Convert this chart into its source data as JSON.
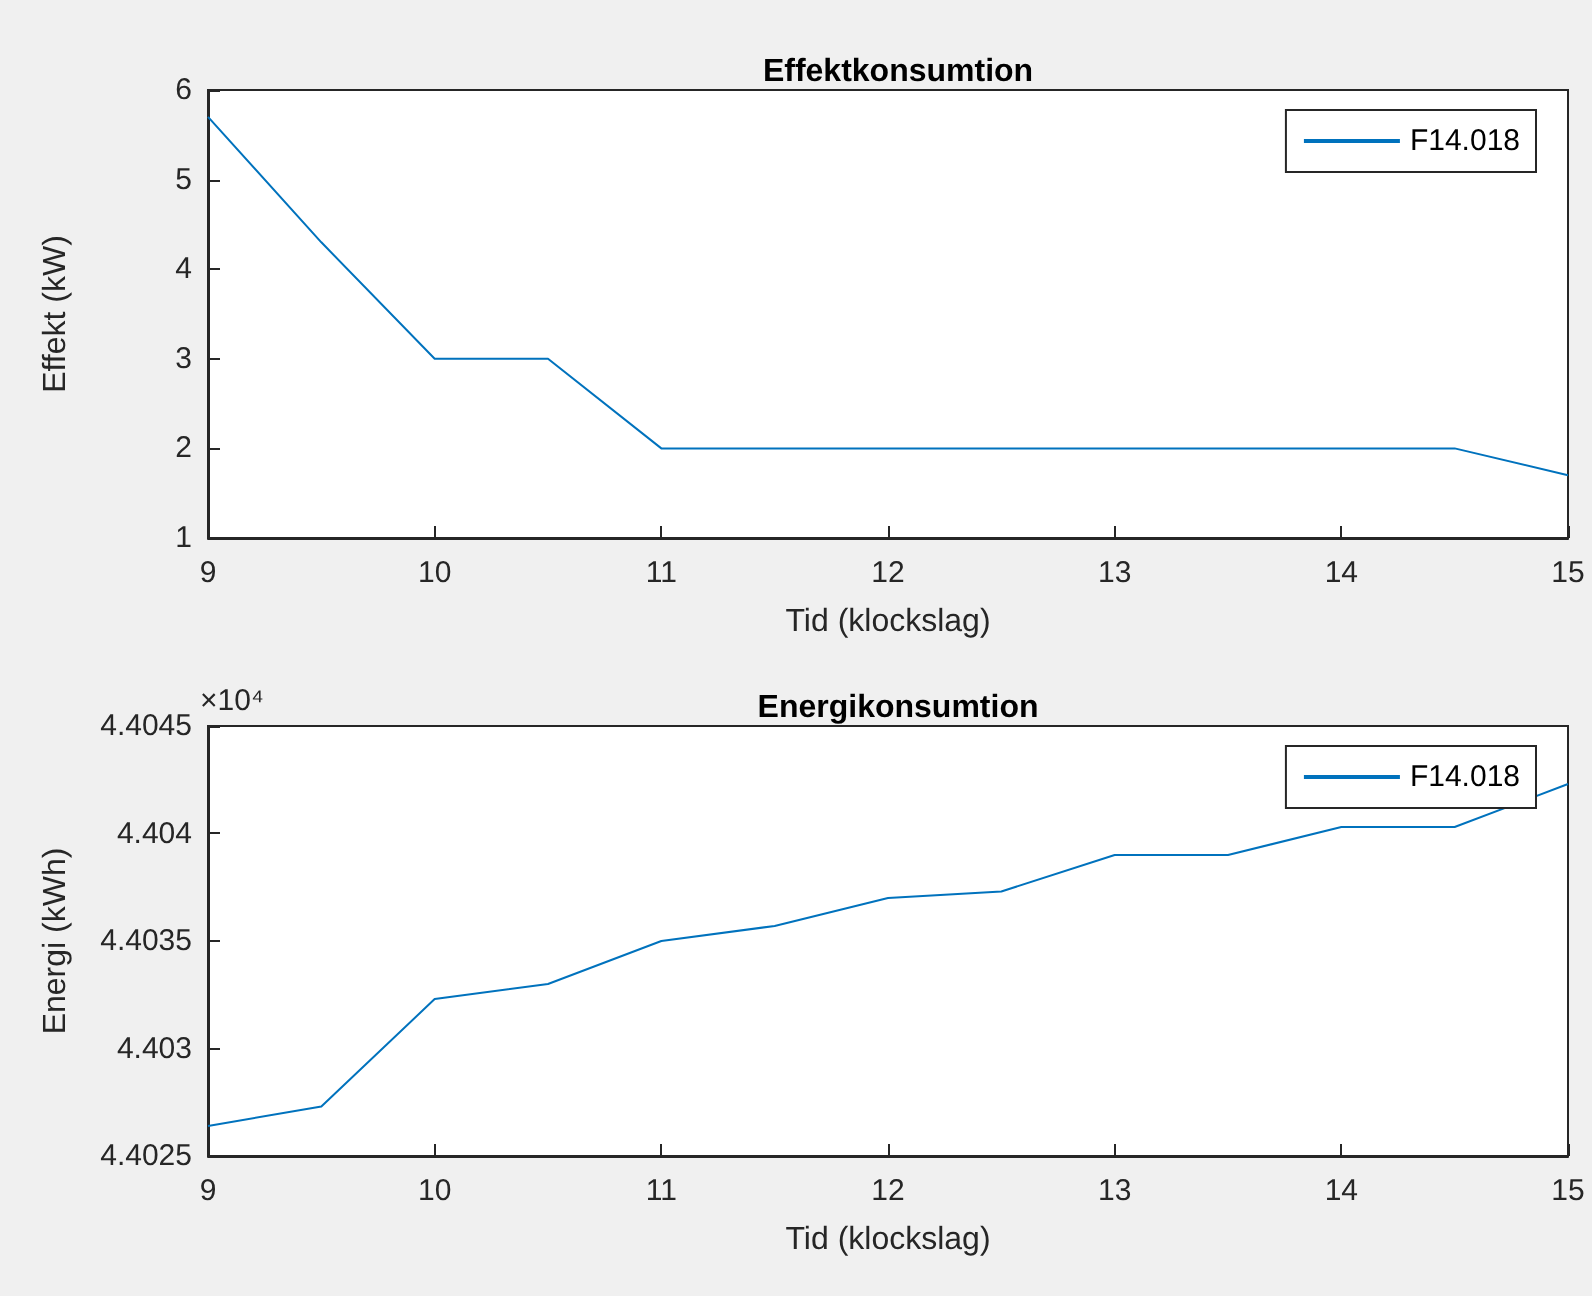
{
  "chart_data": [
    {
      "type": "line",
      "title": "Effektkonsumtion",
      "xlabel": "Tid (klockslag)",
      "ylabel": "Effekt (kW)",
      "x": [
        9,
        9.5,
        10,
        10.5,
        11,
        11.5,
        12,
        12.5,
        13,
        13.5,
        14,
        14.5,
        15
      ],
      "series": [
        {
          "name": "F14.018",
          "color": "#0072bd",
          "values": [
            5.7,
            4.3,
            3,
            3,
            2,
            2,
            2,
            2,
            2,
            2,
            2,
            2,
            1.7
          ]
        }
      ],
      "xlim": [
        9,
        15
      ],
      "xticks": [
        9,
        10,
        11,
        12,
        13,
        14,
        15
      ],
      "ylim": [
        1,
        6
      ],
      "yticks": [
        1,
        2,
        3,
        4,
        5,
        6
      ],
      "legend": "top right"
    },
    {
      "type": "line",
      "title": "Energikonsumtion",
      "xlabel": "Tid (klockslag)",
      "ylabel": "Energi (kWh)",
      "annotations": [
        "×10⁴"
      ],
      "x": [
        9,
        9.5,
        10,
        10.5,
        11,
        11.5,
        12,
        12.5,
        13,
        13.5,
        14,
        14.5,
        15
      ],
      "series": [
        {
          "name": "F14.018",
          "color": "#0072bd",
          "values": [
            4.40264,
            4.40273,
            4.40323,
            4.4033,
            4.4035,
            4.40357,
            4.4037,
            4.40373,
            4.4039,
            4.4039,
            4.40403,
            4.40403,
            4.40423
          ]
        }
      ],
      "xlim": [
        9,
        15
      ],
      "xticks": [
        9,
        10,
        11,
        12,
        13,
        14,
        15
      ],
      "ylim": [
        4.4025,
        4.4045
      ],
      "yticks": [
        4.4025,
        4.403,
        4.4035,
        4.404,
        4.4045
      ],
      "legend": "top right"
    }
  ]
}
